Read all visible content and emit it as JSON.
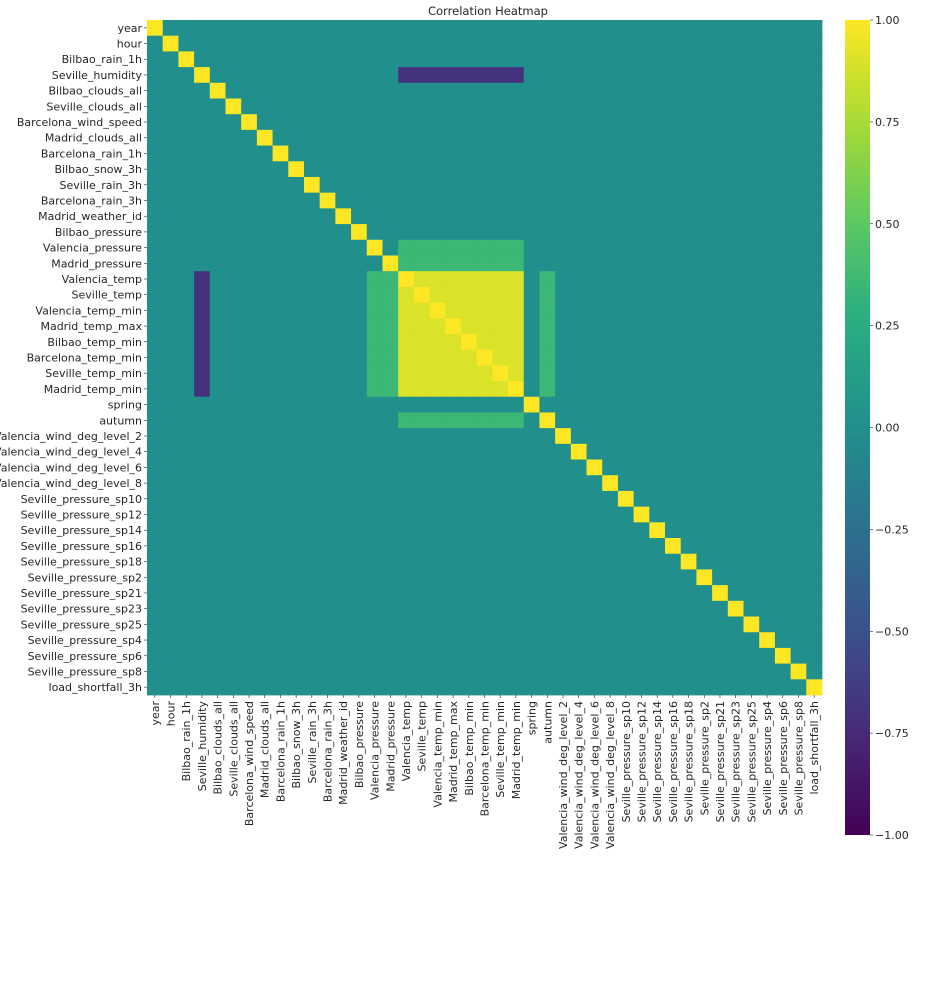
{
  "chart_data": {
    "type": "heatmap",
    "title": "Correlation Heatmap",
    "xlabel": "",
    "ylabel": "",
    "variables": [
      "year",
      "hour",
      "Bilbao_rain_1h",
      "Seville_humidity",
      "Bilbao_clouds_all",
      "Seville_clouds_all",
      "Barcelona_wind_speed",
      "Madrid_clouds_all",
      "Barcelona_rain_1h",
      "Bilbao_snow_3h",
      "Seville_rain_3h",
      "Barcelona_rain_3h",
      "Madrid_weather_id",
      "Bilbao_pressure",
      "Valencia_pressure",
      "Madrid_pressure",
      "Valencia_temp",
      "Seville_temp",
      "Valencia_temp_min",
      "Madrid_temp_max",
      "Bilbao_temp_min",
      "Barcelona_temp_min",
      "Seville_temp_min",
      "Madrid_temp_min",
      "spring",
      "autumn",
      "Valencia_wind_deg_level_2",
      "Valencia_wind_deg_level_4",
      "Valencia_wind_deg_level_6",
      "Valencia_wind_deg_level_8",
      "Seville_pressure_sp10",
      "Seville_pressure_sp12",
      "Seville_pressure_sp14",
      "Seville_pressure_sp16",
      "Seville_pressure_sp18",
      "Seville_pressure_sp2",
      "Seville_pressure_sp21",
      "Seville_pressure_sp23",
      "Seville_pressure_sp25",
      "Seville_pressure_sp4",
      "Seville_pressure_sp6",
      "Seville_pressure_sp8",
      "load_shortfall_3h"
    ],
    "value_range": [
      -1,
      1
    ],
    "colormap": "viridis",
    "colorbar": {
      "ticks": [
        1.0,
        0.75,
        0.5,
        0.25,
        0.0,
        -0.25,
        -0.5,
        -0.75,
        -1.0
      ],
      "tick_labels": [
        "1.00",
        "0.75",
        "0.50",
        "0.25",
        "0.00",
        "−0.25",
        "−0.50",
        "−0.75",
        "−1.00"
      ]
    },
    "correlation_groups": {
      "temperature": [
        "Valencia_temp",
        "Seville_temp",
        "Valencia_temp_min",
        "Madrid_temp_max",
        "Bilbao_temp_min",
        "Barcelona_temp_min",
        "Seville_temp_min",
        "Madrid_temp_min"
      ],
      "temperature_to_temperature": 0.9,
      "humidity_to_temperature": -0.7,
      "pressure_to_temperature": 0.35,
      "autumn_to_temperature": 0.35,
      "default_off_diagonal": 0.0,
      "diagonal": 1.0
    }
  }
}
